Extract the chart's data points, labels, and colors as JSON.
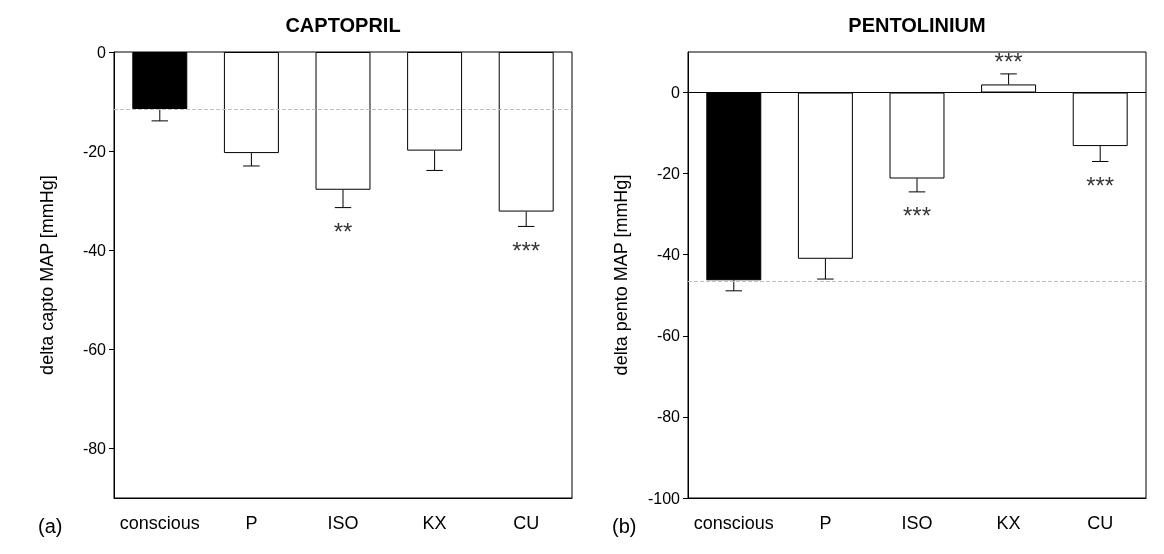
{
  "chart_data": [
    {
      "type": "bar",
      "title": "CAPTOPRIL",
      "ylabel": "delta capto MAP [mmHg]",
      "categories": [
        "conscious",
        "P",
        "ISO",
        "KX",
        "CU"
      ],
      "values": [
        -11.5,
        -20.4,
        -27.8,
        -19.9,
        -32.2
      ],
      "colors": [
        "#000000",
        "#ffffff",
        "#ffffff",
        "#ffffff",
        "#ffffff"
      ],
      "errors": [
        [
          -13.9,
          -11.5
        ],
        [
          -23,
          -20.4
        ],
        [
          -31.4,
          -27.8
        ],
        [
          -23.9,
          -19.9
        ],
        [
          -35.2,
          -32.2
        ]
      ],
      "ylim": [
        -90,
        0
      ],
      "yticks": [
        -80,
        -60,
        -40,
        -20,
        0
      ],
      "grid": false,
      "ref_lines": [
        {
          "axis": "y",
          "value": -11.5,
          "color": "#c0c0c0",
          "line_style": "dashed"
        }
      ],
      "annotations": [
        {
          "text": "**",
          "x": "ISO",
          "y": -31.4
        },
        {
          "text": "***",
          "x": "CU",
          "y": -35.2
        },
        "(a)"
      ]
    },
    {
      "type": "bar",
      "title": "PENTOLINIUM",
      "ylabel": "delta pento MAP [mmHg]",
      "categories": [
        "conscious",
        "P",
        "ISO",
        "KX",
        "CU"
      ],
      "values": [
        -46.3,
        -41,
        -21.2,
        2,
        -13.2
      ],
      "colors": [
        "#000000",
        "#ffffff",
        "#ffffff",
        "#ffffff",
        "#ffffff"
      ],
      "errors": [
        [
          -48.9,
          -46.3
        ],
        [
          -46,
          -41
        ],
        [
          -24.5,
          -21.2
        ],
        [
          2,
          4.6
        ],
        [
          -17,
          -13.2
        ]
      ],
      "ylim": [
        -100,
        10
      ],
      "yticks": [
        -100,
        -80,
        -60,
        -40,
        -20,
        0
      ],
      "grid": false,
      "ref_lines": [
        {
          "axis": "y",
          "value": -46.5,
          "color": "#c0c0c0",
          "line_style": "dashed"
        },
        {
          "axis": "y",
          "value": 0,
          "color": "#000000",
          "line_style": "solid"
        }
      ],
      "annotations": [
        {
          "text": "***",
          "x": "ISO",
          "y": -24.5
        },
        {
          "text": "***",
          "x": "KX",
          "y": 4.6
        },
        {
          "text": "***",
          "x": "CU",
          "y": -17
        },
        "(b)"
      ]
    }
  ]
}
